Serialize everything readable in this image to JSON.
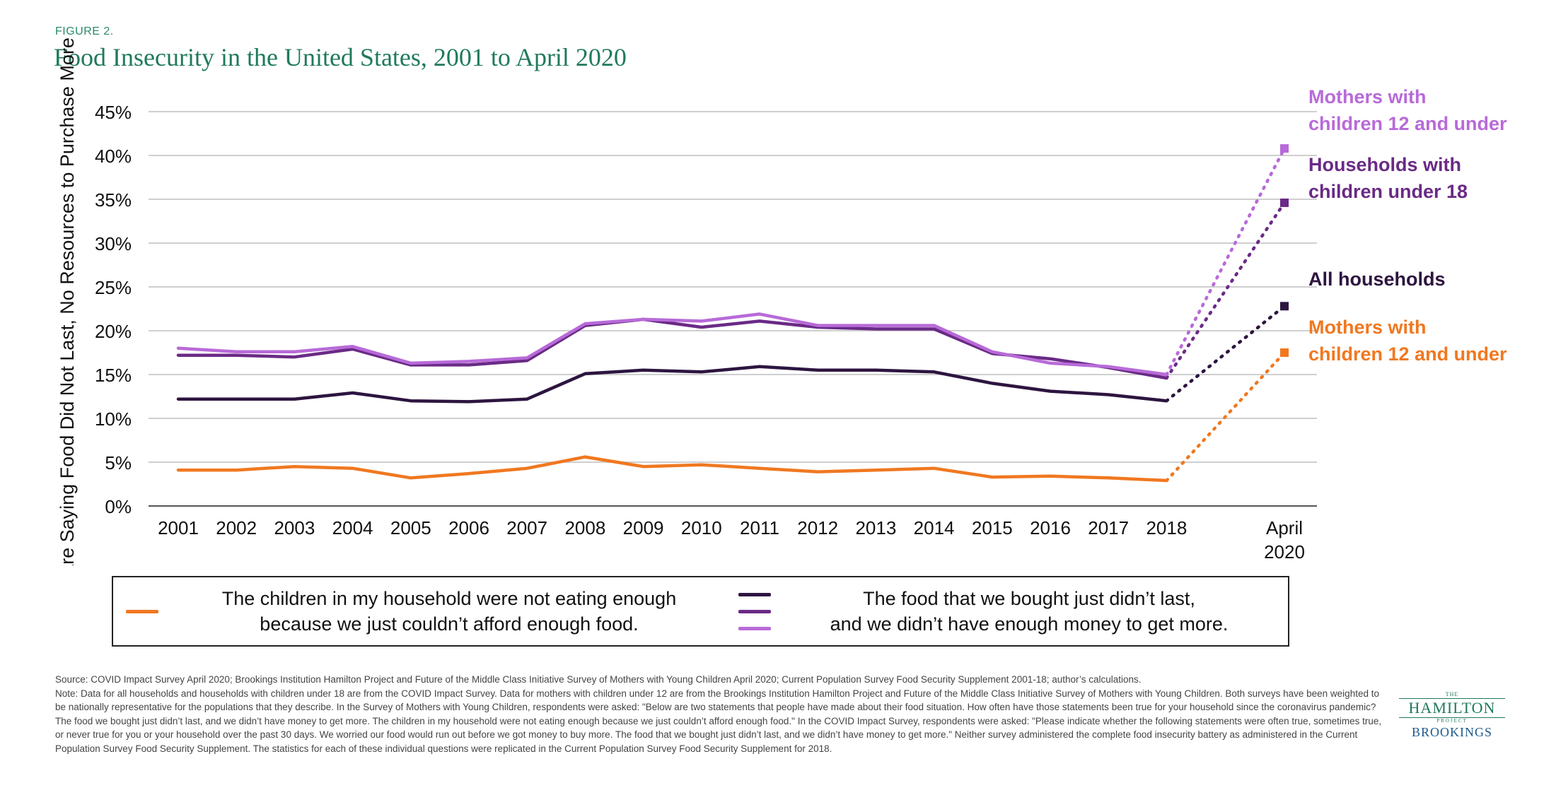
{
  "figure_label": "FIGURE 2.",
  "title": "Food Insecurity in the United States, 2001 to April 2020",
  "chart_data": {
    "type": "line",
    "title": "Food Insecurity in the United States, 2001 to April 2020",
    "ylabel": "Share Saying Food Did Not Last, No Resources to Purchase More",
    "xlabel": "",
    "ylim": [
      0,
      45
    ],
    "yticks": [
      "0%",
      "5%",
      "10%",
      "15%",
      "20%",
      "25%",
      "30%",
      "35%",
      "40%",
      "45%"
    ],
    "ytick_values": [
      0,
      5,
      10,
      15,
      20,
      25,
      30,
      35,
      40,
      45
    ],
    "categories": [
      "2001",
      "2002",
      "2003",
      "2004",
      "2005",
      "2006",
      "2007",
      "2008",
      "2009",
      "2010",
      "2011",
      "2012",
      "2013",
      "2014",
      "2015",
      "2016",
      "2017",
      "2018"
    ],
    "extra_point_label": [
      "April",
      "2020"
    ],
    "grid": true,
    "series": [
      {
        "key": "children_not_eating",
        "color": "#f07820",
        "values": [
          4.1,
          4.1,
          4.5,
          4.3,
          3.2,
          3.7,
          4.3,
          5.6,
          4.5,
          4.7,
          4.3,
          3.9,
          4.1,
          4.3,
          3.3,
          3.4,
          3.2,
          2.9
        ],
        "april_2020": 17.5,
        "end_label": [
          "Mothers with",
          "children 12 and under"
        ]
      },
      {
        "key": "all_households",
        "color": "#2d1540",
        "values": [
          12.2,
          12.2,
          12.2,
          12.9,
          12.0,
          11.9,
          12.2,
          15.1,
          15.5,
          15.3,
          15.9,
          15.5,
          15.5,
          15.3,
          14.0,
          13.1,
          12.7,
          12.0
        ],
        "april_2020": 22.8,
        "end_label": [
          "All households"
        ]
      },
      {
        "key": "households_children_under_18",
        "color": "#6a2a86",
        "values": [
          17.2,
          17.2,
          17.0,
          17.9,
          16.1,
          16.1,
          16.6,
          20.6,
          21.3,
          20.4,
          21.1,
          20.4,
          20.2,
          20.2,
          17.4,
          16.8,
          15.8,
          14.6
        ],
        "april_2020": 34.6,
        "end_label": [
          "Households with",
          "children under 18"
        ]
      },
      {
        "key": "mothers_children_12_under",
        "color": "#b86ad8",
        "values": [
          18.0,
          17.6,
          17.6,
          18.2,
          16.3,
          16.5,
          16.9,
          20.8,
          21.3,
          21.1,
          21.9,
          20.6,
          20.6,
          20.6,
          17.6,
          16.3,
          15.9,
          15.0
        ],
        "april_2020": 40.8,
        "end_label": [
          "Mothers with",
          "children 12 and under"
        ]
      }
    ]
  },
  "legend": {
    "left_text": [
      "The children in my household were not eating enough",
      "because we just couldn’t afford enough food."
    ],
    "left_color": "#f07820",
    "right_text": [
      "The food that we bought just didn’t last,",
      "and we didn’t have enough money to get more."
    ],
    "right_colors": [
      "#2d1540",
      "#6a2a86",
      "#b86ad8"
    ]
  },
  "footnotes": {
    "source": "Source: COVID Impact Survey April 2020; Brookings Institution Hamilton Project and Future of the Middle Class Initiative Survey of Mothers with Young Children April 2020; Current Population Survey Food Security Supplement 2001-18; author’s calculations.",
    "note": "Note: Data for all households and households with children under 18 are from the COVID Impact Survey. Data for mothers with children under 12 are from the Brookings Institution Hamilton Project and Future of the Middle Class Initiative Survey of Mothers with Young Children. Both surveys have been weighted to be nationally representative for the populations that they describe. In the Survey of Mothers with Young Children, respondents were asked: \"Below are two statements that people have made about their food situation. How often have those statements been true for your household since the coronavirus pandemic? The food we bought just didn’t last, and we didn’t have money to get more. The children in my household were not eating enough because we just couldn’t afford enough food.\" In the COVID Impact Survey, respondents were asked: \"Please indicate whether the following statements were often true, sometimes true, or never true for you or your household over the past 30 days. We worried our food would run out before we got money to buy more. The food that we bought just didn’t last, and we didn’t have money to get more.\" Neither survey administered the complete food insecurity battery as administered in the Current Population Survey Food Security Supplement. The statistics for each of these individual questions were replicated in the Current Population Survey Food Security Supplement for 2018."
  },
  "logo": {
    "the": "THE",
    "hamilton": "HAMILTON",
    "project": "PROJECT",
    "brookings": "BROOKINGS"
  }
}
